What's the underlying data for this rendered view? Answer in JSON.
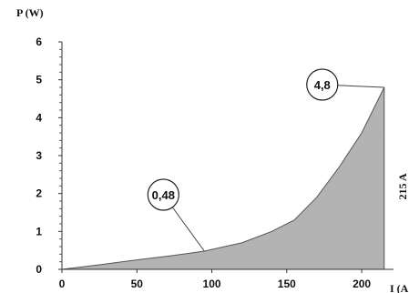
{
  "chart_data": {
    "type": "area",
    "ylabel": "P (W)",
    "xlabel": "I (A",
    "xlim": [
      0,
      220
    ],
    "ylim": [
      0,
      6
    ],
    "x_ticks": [
      "0",
      "50",
      "100",
      "150",
      "200"
    ],
    "y_ticks": [
      "0",
      "1",
      "2",
      "3",
      "4",
      "5",
      "6"
    ],
    "series": [
      {
        "x": [
          0,
          25,
          50,
          75,
          95,
          120,
          140,
          155,
          170,
          185,
          200,
          215
        ],
        "y": [
          0,
          0.12,
          0.25,
          0.37,
          0.48,
          0.7,
          1.0,
          1.3,
          1.9,
          2.7,
          3.6,
          4.8
        ]
      }
    ],
    "annotations": [
      {
        "text": "0,48",
        "x": 95,
        "y": 0.48
      },
      {
        "text": "4,8",
        "x": 215,
        "y": 4.8
      }
    ],
    "side_label": "215 A",
    "fill_color": "#b3b3b3",
    "line_color": "#555555"
  }
}
